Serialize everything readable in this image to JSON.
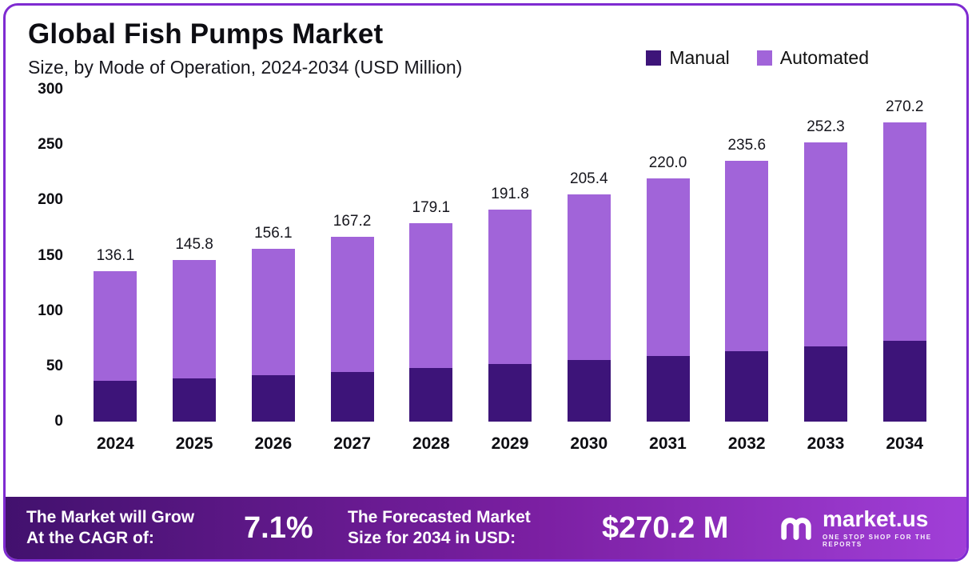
{
  "header": {
    "title": "Global Fish Pumps Market",
    "subtitle": "Size, by Mode of Operation, 2024-2034 (USD Million)"
  },
  "legend": {
    "items": [
      {
        "label": "Manual",
        "color": "#3d1479"
      },
      {
        "label": "Automated",
        "color": "#a164d9"
      }
    ]
  },
  "chart_data": {
    "type": "bar",
    "stacked": true,
    "title": "Global Fish Pumps Market",
    "subtitle": "Size, by Mode of Operation, 2024-2034 (USD Million)",
    "categories": [
      "2024",
      "2025",
      "2026",
      "2027",
      "2028",
      "2029",
      "2030",
      "2031",
      "2032",
      "2033",
      "2034"
    ],
    "series": [
      {
        "name": "Manual",
        "color": "#3d1479",
        "values": [
          36.7,
          39.3,
          42.1,
          45.1,
          48.3,
          51.7,
          55.4,
          59.3,
          63.5,
          68.0,
          72.9
        ]
      },
      {
        "name": "Automated",
        "color": "#a164d9",
        "values": [
          99.4,
          106.5,
          114.0,
          122.1,
          130.8,
          140.1,
          150.0,
          160.7,
          172.1,
          184.3,
          197.3
        ]
      }
    ],
    "totals": [
      136.1,
      145.8,
      156.1,
      167.2,
      179.1,
      191.8,
      205.4,
      220.0,
      235.6,
      252.3,
      270.2
    ],
    "total_labels": [
      "136.1",
      "145.8",
      "156.1",
      "167.2",
      "179.1",
      "191.8",
      "205.4",
      "220.0",
      "235.6",
      "252.3",
      "270.2"
    ],
    "xlabel": "",
    "ylabel": "",
    "ylim": [
      0,
      300
    ],
    "yticks": [
      300,
      250,
      200,
      150,
      100,
      50,
      0
    ],
    "grid": false,
    "legend_position": "top-right"
  },
  "footer": {
    "cagr_label_line1": "The Market will Grow",
    "cagr_label_line2": "At the CAGR of:",
    "cagr_value": "7.1%",
    "forecast_label_line1": "The Forecasted Market",
    "forecast_label_line2": "Size for 2034 in USD:",
    "forecast_value": "$270.2 M",
    "brand_name": "market.us",
    "brand_tagline": "ONE STOP SHOP FOR THE REPORTS"
  },
  "colors": {
    "manual": "#3d1479",
    "automated": "#a164d9",
    "border": "#7f2bd1",
    "footer_gradient_start": "#42116e",
    "footer_gradient_end": "#a13fd8"
  }
}
